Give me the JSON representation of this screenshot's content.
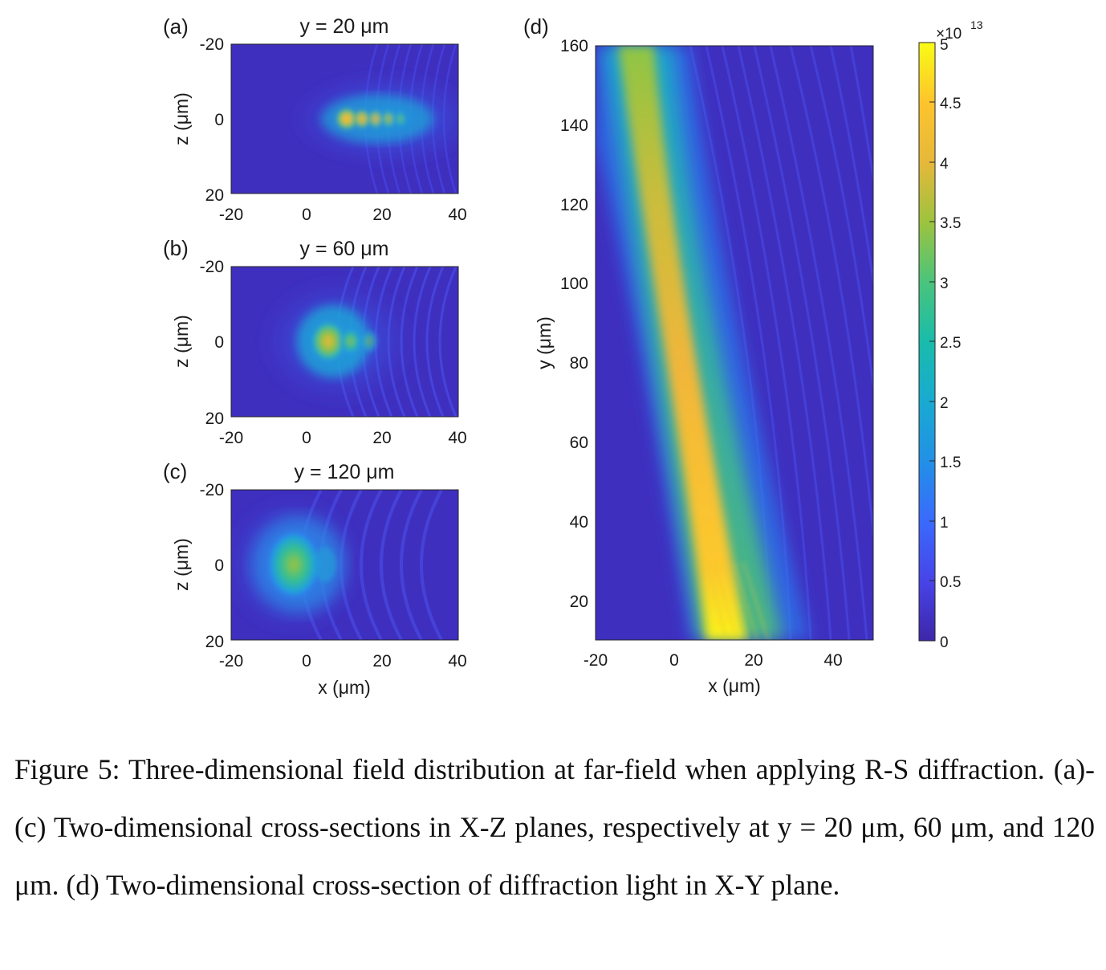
{
  "figure": {
    "panels": [
      {
        "label": "(a)",
        "title": "y = 20 μm",
        "ylabel": "z (μm)",
        "xlabel": "",
        "xticks": [
          "-20",
          "0",
          "20",
          "40"
        ],
        "yticks": [
          "-20",
          "0",
          "20"
        ]
      },
      {
        "label": "(b)",
        "title": "y = 60 μm",
        "ylabel": "z (μm)",
        "xlabel": "",
        "xticks": [
          "-20",
          "0",
          "20",
          "40"
        ],
        "yticks": [
          "-20",
          "0",
          "20"
        ]
      },
      {
        "label": "(c)",
        "title": "y = 120 μm",
        "ylabel": "z (μm)",
        "xlabel": "x (μm)",
        "xticks": [
          "-20",
          "0",
          "20",
          "40"
        ],
        "yticks": [
          "-20",
          "0",
          "20"
        ]
      },
      {
        "label": "(d)",
        "title": "",
        "ylabel": "y (μm)",
        "xlabel": "x (μm)",
        "xticks": [
          "-20",
          "0",
          "20",
          "40"
        ],
        "yticks": [
          "160",
          "140",
          "120",
          "100",
          "80",
          "60",
          "40",
          "20"
        ]
      }
    ],
    "colorbar": {
      "exponent_base": "×10",
      "exponent": "13",
      "ticks": [
        "5",
        "4.5",
        "4",
        "3.5",
        "3",
        "2.5",
        "2",
        "1.5",
        "1",
        "0.5",
        "0"
      ]
    }
  },
  "chart_data": [
    {
      "type": "heatmap",
      "title": "y = 20 μm",
      "xlabel": "",
      "ylabel": "z (μm)",
      "xlim": [
        -20,
        40
      ],
      "ylim": [
        -20,
        20
      ],
      "y_reversed": true,
      "peak": {
        "x": 10,
        "z": 0,
        "value": 45000000000000.0
      },
      "description_values": {
        "bright_fringe_x": [
          10,
          14,
          18,
          22,
          26
        ]
      }
    },
    {
      "type": "heatmap",
      "title": "y = 60 μm",
      "xlabel": "",
      "ylabel": "z (μm)",
      "xlim": [
        -20,
        40
      ],
      "ylim": [
        -20,
        20
      ],
      "y_reversed": true,
      "peak": {
        "x": 5,
        "z": 0,
        "value": 40000000000000.0
      }
    },
    {
      "type": "heatmap",
      "title": "y = 120 μm",
      "xlabel": "x (μm)",
      "ylabel": "z (μm)",
      "xlim": [
        -20,
        40
      ],
      "ylim": [
        -20,
        20
      ],
      "y_reversed": true,
      "peak": {
        "x": -3,
        "z": 0,
        "value": 32000000000000.0
      }
    },
    {
      "type": "heatmap",
      "title": "",
      "xlabel": "x (μm)",
      "ylabel": "y (μm)",
      "xlim": [
        -20,
        50
      ],
      "ylim": [
        10,
        160
      ],
      "beam_center": {
        "y": [
          10,
          20,
          40,
          60,
          80,
          100,
          120,
          140,
          160
        ],
        "x": [
          12,
          9,
          4,
          0,
          -3,
          -6,
          -9,
          -12,
          -15
        ]
      },
      "peak_values": [
        50000000000000.0,
        46000000000000.0,
        43000000000000.0,
        41000000000000.0,
        39000000000000.0,
        36000000000000.0,
        34000000000000.0,
        33000000000000.0,
        33000000000000.0
      ],
      "colorbar": {
        "min": 0,
        "max": 50000000000000.0,
        "ticks": [
          0,
          5000000000000.0,
          10000000000000.0,
          15000000000000.0,
          20000000000000.0,
          25000000000000.0,
          30000000000000.0,
          35000000000000.0,
          40000000000000.0,
          45000000000000.0,
          50000000000000.0
        ]
      }
    }
  ],
  "caption": {
    "text": "Figure 5: Three-dimensional field distribution at far-field when applying R-S diffraction. (a)-(c) Two-dimensional cross-sections in X-Z planes, respectively at y = 20 μm, 60 μm, and 120 μm. (d) Two-dimensional cross-section of diffraction light in X-Y plane."
  }
}
